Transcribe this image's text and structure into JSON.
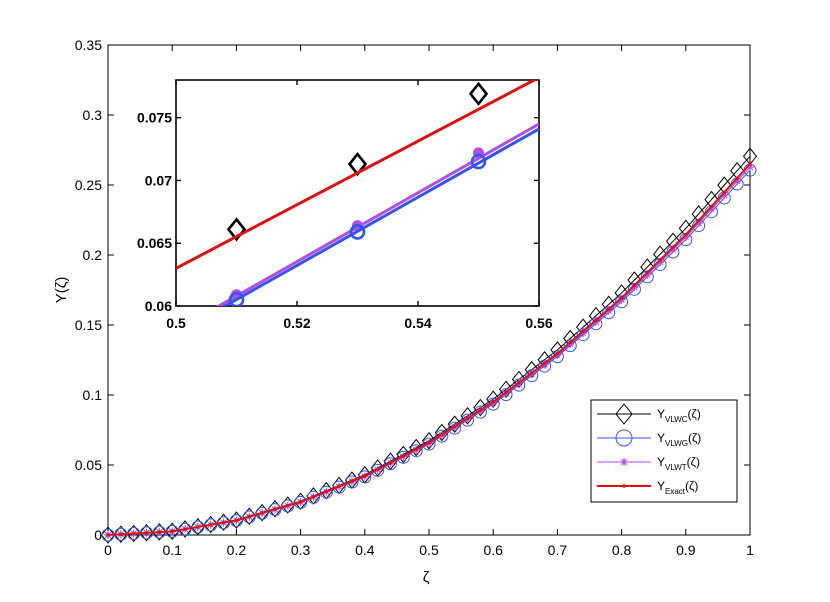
{
  "chart_data": {
    "type": "line",
    "main": {
      "xlabel": "ζ",
      "ylabel": "Y(ζ)",
      "xlim": [
        0,
        1
      ],
      "ylim": [
        0,
        0.35
      ],
      "xticks": [
        "0",
        "0.1",
        "0.2",
        "0.3",
        "0.4",
        "0.5",
        "0.6",
        "0.7",
        "0.8",
        "0.9",
        "1"
      ],
      "yticks": [
        "0",
        "0.05",
        "0.1",
        "0.15",
        "0.2",
        "0.25",
        "0.3",
        "0.35"
      ],
      "x": [
        0,
        0.1,
        0.2,
        0.3,
        0.4,
        0.5,
        0.6,
        0.7,
        0.8,
        0.9,
        1.0
      ],
      "legend_position": "lower-right",
      "series": [
        {
          "name": "Y_VLWC(ζ)",
          "label_main": "Y",
          "label_sub": "VLWC",
          "label_end": "(ζ)",
          "marker": "diamond",
          "color": "#000000",
          "values": [
            0,
            0.0027,
            0.0107,
            0.0241,
            0.043,
            0.0673,
            0.097,
            0.1322,
            0.1729,
            0.219,
            0.2705
          ]
        },
        {
          "name": "Y_VLWG(ζ)",
          "label_main": "Y",
          "label_sub": "VLWG",
          "label_end": "(ζ)",
          "marker": "circle",
          "color": "#3355ee",
          "values": [
            0,
            0.0026,
            0.0103,
            0.0233,
            0.0415,
            0.0649,
            0.0935,
            0.1274,
            0.1666,
            0.211,
            0.2606
          ]
        },
        {
          "name": "Y_VLWT(ζ)",
          "label_main": "Y",
          "label_sub": "VLWT",
          "label_end": "(ζ)",
          "marker": "asterisk",
          "color": "#b24de6",
          "values": [
            0,
            0.0026,
            0.0104,
            0.0235,
            0.0418,
            0.0654,
            0.0943,
            0.1285,
            0.168,
            0.2128,
            0.2628
          ]
        },
        {
          "name": "Y_Exact(ζ)",
          "label_main": "Y",
          "label_sub": "Exact",
          "label_end": "(ζ)",
          "marker": "dot",
          "color": "#e01010",
          "values": [
            0,
            0.0026,
            0.0105,
            0.0237,
            0.0422,
            0.066,
            0.0951,
            0.1296,
            0.1694,
            0.2145,
            0.265
          ]
        }
      ]
    },
    "inset": {
      "xlim": [
        0.5,
        0.56
      ],
      "ylim": [
        0.06,
        0.078
      ],
      "xticks": [
        "0.5",
        "0.52",
        "0.54",
        "0.56"
      ],
      "yticks": [
        "0.06",
        "0.065",
        "0.07",
        "0.075"
      ],
      "series": [
        {
          "name": "Y_VLWC(ζ)",
          "color": "#000000",
          "marker": "diamond",
          "x": [
            0.51,
            0.53,
            0.55
          ],
          "values": [
            0.0661,
            0.0713,
            0.0769
          ]
        },
        {
          "name": "Y_Exact(ζ)",
          "color": "#e01010",
          "line_x": [
            0.5,
            0.56
          ],
          "line_values": [
            0.063,
            0.0782
          ]
        },
        {
          "name": "Y_VLWT(ζ)",
          "color": "#b24de6",
          "marker": "dot",
          "x": [
            0.51,
            0.53,
            0.55
          ],
          "values": [
            0.0609,
            0.0664,
            0.0722
          ],
          "line_x": [
            0.506,
            0.56
          ],
          "line_values": [
            0.0597,
            0.0745
          ]
        },
        {
          "name": "Y_VLWG(ζ)",
          "color": "#3355ee",
          "marker": "circle",
          "x": [
            0.51,
            0.53,
            0.55
          ],
          "values": [
            0.0605,
            0.0659,
            0.0715
          ],
          "line_x": [
            0.507,
            0.56
          ],
          "line_values": [
            0.0597,
            0.0741
          ]
        }
      ]
    }
  }
}
